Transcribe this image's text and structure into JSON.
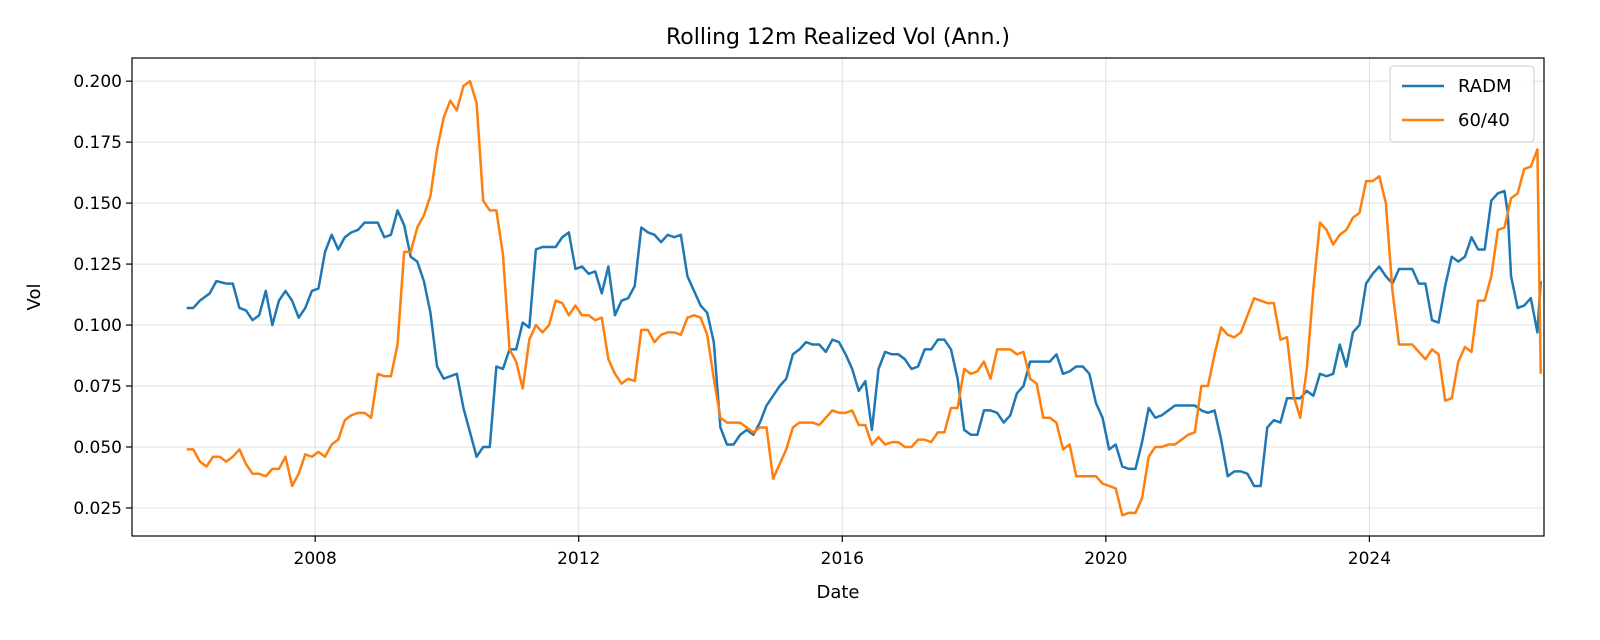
{
  "chart_data": {
    "type": "line",
    "title": "Rolling 12m Realized Vol (Ann.)",
    "xlabel": "Date",
    "ylabel": "Vol",
    "xlim": [
      2005.22,
      2026.65
    ],
    "ylim": [
      0.0135,
      0.2095
    ],
    "xticks": [
      2008,
      2012,
      2016,
      2020,
      2024
    ],
    "yticks": [
      0.025,
      0.05,
      0.075,
      0.1,
      0.125,
      0.15,
      0.175,
      0.2
    ],
    "xtick_labels": [
      "2008",
      "2012",
      "2016",
      "2020",
      "2024"
    ],
    "ytick_labels": [
      "0.025",
      "0.050",
      "0.075",
      "0.100",
      "0.125",
      "0.150",
      "0.175",
      "0.200"
    ],
    "grid": true,
    "legend": "top-right",
    "series": [
      {
        "name": "RADM",
        "color": "#1f77b4",
        "points": [
          [
            2006.05,
            0.107
          ],
          [
            2006.15,
            0.107
          ],
          [
            2006.25,
            0.11
          ],
          [
            2006.4,
            0.113
          ],
          [
            2006.5,
            0.118
          ],
          [
            2006.65,
            0.117
          ],
          [
            2006.75,
            0.117
          ],
          [
            2006.85,
            0.107
          ],
          [
            2006.95,
            0.106
          ],
          [
            2007.05,
            0.102
          ],
          [
            2007.15,
            0.104
          ],
          [
            2007.25,
            0.114
          ],
          [
            2007.35,
            0.1
          ],
          [
            2007.45,
            0.11
          ],
          [
            2007.55,
            0.114
          ],
          [
            2007.65,
            0.11
          ],
          [
            2007.75,
            0.103
          ],
          [
            2007.85,
            0.107
          ],
          [
            2007.95,
            0.114
          ],
          [
            2008.05,
            0.115
          ],
          [
            2008.15,
            0.13
          ],
          [
            2008.25,
            0.137
          ],
          [
            2008.35,
            0.131
          ],
          [
            2008.45,
            0.136
          ],
          [
            2008.55,
            0.138
          ],
          [
            2008.65,
            0.139
          ],
          [
            2008.75,
            0.142
          ],
          [
            2008.85,
            0.142
          ],
          [
            2008.95,
            0.142
          ],
          [
            2009.05,
            0.136
          ],
          [
            2009.15,
            0.137
          ],
          [
            2009.25,
            0.147
          ],
          [
            2009.35,
            0.141
          ],
          [
            2009.45,
            0.128
          ],
          [
            2009.55,
            0.126
          ],
          [
            2009.65,
            0.118
          ],
          [
            2009.75,
            0.105
          ],
          [
            2009.85,
            0.083
          ],
          [
            2009.95,
            0.078
          ],
          [
            2010.05,
            0.079
          ],
          [
            2010.15,
            0.08
          ],
          [
            2010.25,
            0.066
          ],
          [
            2010.35,
            0.056
          ],
          [
            2010.45,
            0.046
          ],
          [
            2010.55,
            0.05
          ],
          [
            2010.65,
            0.05
          ],
          [
            2010.75,
            0.083
          ],
          [
            2010.85,
            0.082
          ],
          [
            2010.95,
            0.09
          ],
          [
            2011.05,
            0.09
          ],
          [
            2011.15,
            0.101
          ],
          [
            2011.25,
            0.099
          ],
          [
            2011.35,
            0.131
          ],
          [
            2011.45,
            0.132
          ],
          [
            2011.55,
            0.132
          ],
          [
            2011.65,
            0.132
          ],
          [
            2011.75,
            0.136
          ],
          [
            2011.85,
            0.138
          ],
          [
            2011.95,
            0.123
          ],
          [
            2012.05,
            0.124
          ],
          [
            2012.15,
            0.121
          ],
          [
            2012.25,
            0.122
          ],
          [
            2012.35,
            0.113
          ],
          [
            2012.45,
            0.124
          ],
          [
            2012.55,
            0.104
          ],
          [
            2012.65,
            0.11
          ],
          [
            2012.75,
            0.111
          ],
          [
            2012.85,
            0.116
          ],
          [
            2012.95,
            0.14
          ],
          [
            2013.05,
            0.138
          ],
          [
            2013.15,
            0.137
          ],
          [
            2013.25,
            0.134
          ],
          [
            2013.35,
            0.137
          ],
          [
            2013.45,
            0.136
          ],
          [
            2013.55,
            0.137
          ],
          [
            2013.65,
            0.12
          ],
          [
            2013.75,
            0.114
          ],
          [
            2013.85,
            0.108
          ],
          [
            2013.95,
            0.105
          ],
          [
            2014.05,
            0.093
          ],
          [
            2014.15,
            0.058
          ],
          [
            2014.25,
            0.051
          ],
          [
            2014.35,
            0.051
          ],
          [
            2014.45,
            0.055
          ],
          [
            2014.55,
            0.057
          ],
          [
            2014.65,
            0.055
          ],
          [
            2014.75,
            0.06
          ],
          [
            2014.85,
            0.067
          ],
          [
            2014.95,
            0.071
          ],
          [
            2015.05,
            0.075
          ],
          [
            2015.15,
            0.078
          ],
          [
            2015.25,
            0.088
          ],
          [
            2015.35,
            0.09
          ],
          [
            2015.45,
            0.093
          ],
          [
            2015.55,
            0.092
          ],
          [
            2015.65,
            0.092
          ],
          [
            2015.75,
            0.089
          ],
          [
            2015.85,
            0.094
          ],
          [
            2015.95,
            0.093
          ],
          [
            2016.05,
            0.088
          ],
          [
            2016.15,
            0.082
          ],
          [
            2016.25,
            0.073
          ],
          [
            2016.35,
            0.077
          ],
          [
            2016.45,
            0.057
          ],
          [
            2016.55,
            0.082
          ],
          [
            2016.65,
            0.089
          ],
          [
            2016.75,
            0.088
          ],
          [
            2016.85,
            0.088
          ],
          [
            2016.95,
            0.086
          ],
          [
            2017.05,
            0.082
          ],
          [
            2017.15,
            0.083
          ],
          [
            2017.25,
            0.09
          ],
          [
            2017.35,
            0.09
          ],
          [
            2017.45,
            0.094
          ],
          [
            2017.55,
            0.094
          ],
          [
            2017.65,
            0.09
          ],
          [
            2017.75,
            0.078
          ],
          [
            2017.85,
            0.057
          ],
          [
            2017.95,
            0.055
          ],
          [
            2018.05,
            0.055
          ],
          [
            2018.15,
            0.065
          ],
          [
            2018.25,
            0.065
          ],
          [
            2018.35,
            0.064
          ],
          [
            2018.45,
            0.06
          ],
          [
            2018.55,
            0.063
          ],
          [
            2018.65,
            0.072
          ],
          [
            2018.75,
            0.075
          ],
          [
            2018.85,
            0.085
          ],
          [
            2018.95,
            0.085
          ],
          [
            2019.05,
            0.085
          ],
          [
            2019.15,
            0.085
          ],
          [
            2019.25,
            0.088
          ],
          [
            2019.35,
            0.08
          ],
          [
            2019.45,
            0.081
          ],
          [
            2019.55,
            0.083
          ],
          [
            2019.65,
            0.083
          ],
          [
            2019.75,
            0.08
          ],
          [
            2019.85,
            0.068
          ],
          [
            2019.95,
            0.062
          ],
          [
            2020.05,
            0.049
          ],
          [
            2020.15,
            0.051
          ],
          [
            2020.25,
            0.042
          ],
          [
            2020.35,
            0.041
          ],
          [
            2020.45,
            0.041
          ],
          [
            2020.55,
            0.052
          ],
          [
            2020.65,
            0.066
          ],
          [
            2020.75,
            0.062
          ],
          [
            2020.85,
            0.063
          ],
          [
            2020.95,
            0.065
          ],
          [
            2021.05,
            0.067
          ],
          [
            2021.15,
            0.067
          ],
          [
            2021.25,
            0.067
          ],
          [
            2021.35,
            0.067
          ],
          [
            2021.45,
            0.065
          ],
          [
            2021.55,
            0.064
          ],
          [
            2021.65,
            0.065
          ],
          [
            2021.75,
            0.053
          ],
          [
            2021.85,
            0.038
          ],
          [
            2021.95,
            0.04
          ],
          [
            2022.05,
            0.04
          ],
          [
            2022.15,
            0.039
          ],
          [
            2022.25,
            0.034
          ],
          [
            2022.35,
            0.034
          ],
          [
            2022.45,
            0.058
          ],
          [
            2022.55,
            0.061
          ],
          [
            2022.65,
            0.06
          ],
          [
            2022.75,
            0.07
          ],
          [
            2022.85,
            0.07
          ],
          [
            2022.95,
            0.07
          ],
          [
            2023.05,
            0.073
          ],
          [
            2023.15,
            0.071
          ],
          [
            2023.25,
            0.08
          ],
          [
            2023.35,
            0.079
          ],
          [
            2023.45,
            0.08
          ],
          [
            2023.55,
            0.092
          ],
          [
            2023.65,
            0.083
          ],
          [
            2023.75,
            0.097
          ],
          [
            2023.85,
            0.1
          ],
          [
            2023.95,
            0.117
          ],
          [
            2024.05,
            0.121
          ],
          [
            2024.15,
            0.124
          ],
          [
            2024.25,
            0.12
          ],
          [
            2024.35,
            0.117
          ],
          [
            2024.45,
            0.123
          ],
          [
            2024.55,
            0.123
          ],
          [
            2024.65,
            0.123
          ],
          [
            2024.75,
            0.117
          ],
          [
            2024.85,
            0.117
          ],
          [
            2024.95,
            0.102
          ],
          [
            2025.05,
            0.101
          ],
          [
            2025.15,
            0.116
          ],
          [
            2025.25,
            0.128
          ],
          [
            2025.35,
            0.126
          ],
          [
            2025.45,
            0.128
          ],
          [
            2025.55,
            0.136
          ],
          [
            2025.65,
            0.131
          ],
          [
            2025.75,
            0.131
          ],
          [
            2025.85,
            0.151
          ],
          [
            2025.95,
            0.154
          ],
          [
            2026.05,
            0.155
          ],
          [
            2026.1,
            0.146
          ],
          [
            2026.15,
            0.12
          ],
          [
            2026.25,
            0.107
          ],
          [
            2026.35,
            0.108
          ],
          [
            2026.45,
            0.111
          ],
          [
            2026.55,
            0.097
          ],
          [
            2026.6,
            0.118
          ]
        ]
      }
    ]
  }
}
